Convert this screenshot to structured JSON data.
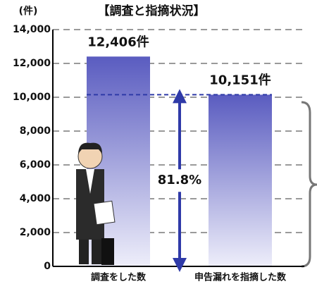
{
  "chart_data": {
    "type": "bar",
    "title": "【調査と指摘状況】",
    "unit": "(件)",
    "categories": [
      "調査をした数",
      "申告漏れを指摘した数"
    ],
    "values": [
      12406,
      10151
    ],
    "value_labels": [
      "12,406件",
      "10,151件"
    ],
    "color": "#5a5cc0",
    "annotation": "81.8%",
    "ylim": [
      0,
      14000
    ],
    "yticks": [
      0,
      {
        "value": 2000,
        "label": "2,000"
      },
      {
        "value": 4000,
        "label": "4,000"
      },
      {
        "value": 6000,
        "label": "6,000"
      },
      {
        "value": 8000,
        "label": "8,000"
      },
      {
        "value": 10000,
        "label": "10,000"
      },
      {
        "value": 12000,
        "label": "12,000"
      },
      {
        "value": 14000,
        "label": "14,000"
      }
    ],
    "grid": true
  }
}
